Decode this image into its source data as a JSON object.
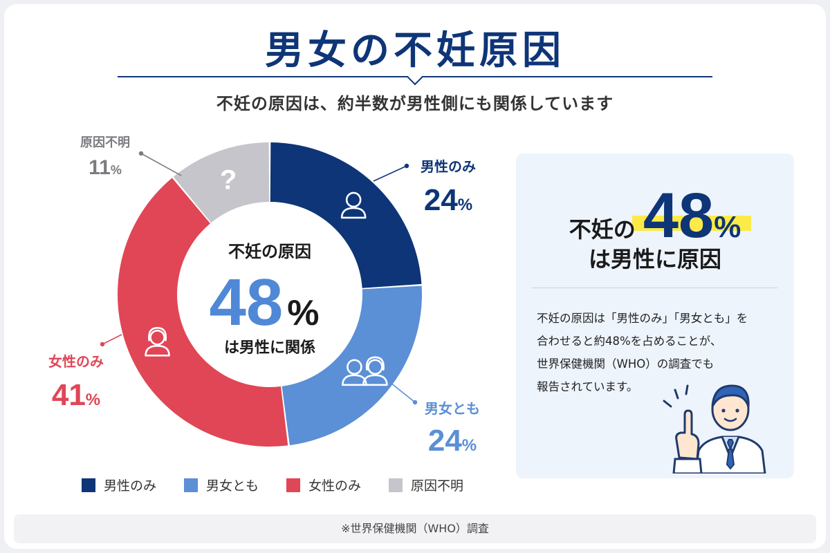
{
  "page": {
    "title": "男女の不妊原因",
    "subtitle": "不妊の原因は、約半数が男性側にも関係しています"
  },
  "chart_data": {
    "type": "pie",
    "style": "donut",
    "start_angle_deg": 0,
    "direction": "clockwise",
    "slices": [
      {
        "key": "male",
        "label": "男性のみ",
        "value": 24,
        "pct_text": "24",
        "color": "#0e3577",
        "icon": "man-icon"
      },
      {
        "key": "both",
        "label": "男女とも",
        "value": 24,
        "pct_text": "24",
        "color": "#5b8fd6",
        "icon": "couple-icon"
      },
      {
        "key": "female",
        "label": "女性のみ",
        "value": 41,
        "pct_text": "41",
        "color": "#e04656",
        "icon": "woman-icon"
      },
      {
        "key": "unknown",
        "label": "原因不明",
        "value": 11,
        "pct_text": "11",
        "color": "#c6c5cb",
        "icon": "question-icon"
      }
    ],
    "center": {
      "line1": "不妊の原因",
      "value": "48",
      "line2": "は男性に関係"
    },
    "percent_symbol": "%",
    "legend_position": "bottom-left"
  },
  "legend": [
    {
      "label": "男性のみ",
      "color": "#0e3577"
    },
    {
      "label": "男女とも",
      "color": "#5b8fd6"
    },
    {
      "label": "女性のみ",
      "color": "#e04656"
    },
    {
      "label": "原因不明",
      "color": "#c6c5cb"
    }
  ],
  "highlight": {
    "prefix": "不妊の",
    "value": "48",
    "percent": "%",
    "suffix": "は男性に原因",
    "body_lines": [
      "不妊の原因は「男性のみ」「男女とも」を",
      "合わせると約48%を占めることが、",
      "世界保健機関（WHO）の調査でも",
      "報告されています。"
    ]
  },
  "footer": "※世界保健機関（WHO）調査",
  "colors": {
    "navy": "#0e3577",
    "blue": "#5b8fd6",
    "red": "#e04656",
    "gray": "#c6c5cb",
    "highlight_yellow": "#fbea48",
    "panel_bg": "#eef4fc"
  }
}
